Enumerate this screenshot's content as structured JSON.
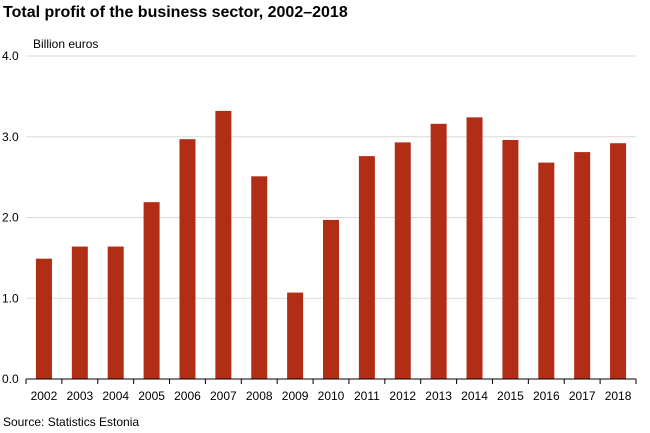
{
  "chart_data": {
    "type": "bar",
    "title": "Total profit of the business sector, 2002–2018",
    "ylabel": "Billion euros",
    "xlabel": "",
    "source": "Source: Statistics Estonia",
    "ylim": [
      0,
      4
    ],
    "yticks": [
      "0.0",
      "1.0",
      "2.0",
      "3.0",
      "4.0"
    ],
    "grid": true,
    "bar_color": "#b22d16",
    "categories": [
      "2002",
      "2003",
      "2004",
      "2005",
      "2006",
      "2007",
      "2008",
      "2009",
      "2010",
      "2011",
      "2012",
      "2013",
      "2014",
      "2015",
      "2016",
      "2017",
      "2018"
    ],
    "values": [
      1.49,
      1.64,
      1.64,
      2.19,
      2.97,
      3.32,
      2.51,
      1.07,
      1.97,
      2.76,
      2.93,
      3.16,
      3.24,
      2.96,
      2.68,
      2.81,
      2.92
    ]
  }
}
